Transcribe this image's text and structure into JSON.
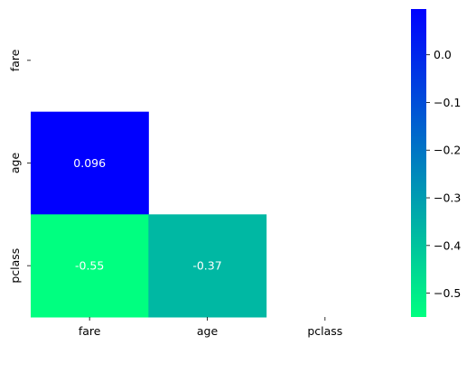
{
  "chart_data": {
    "type": "heatmap",
    "mask": "upper-triangle-including-diagonal",
    "row_labels": [
      "fare",
      "age",
      "pclass"
    ],
    "col_labels": [
      "fare",
      "age",
      "pclass"
    ],
    "cells": [
      {
        "row": 1,
        "col": 0,
        "value": 0.096,
        "label": "0.096"
      },
      {
        "row": 2,
        "col": 0,
        "value": -0.55,
        "label": "-0.55"
      },
      {
        "row": 2,
        "col": 1,
        "value": -0.37,
        "label": "-0.37"
      }
    ],
    "colormap": {
      "name": "winter_r",
      "vmin": -0.55,
      "vmax": 0.096,
      "low_color": "#00ff80",
      "high_color": "#0000ff"
    },
    "colorbar": {
      "ticks": [
        0.0,
        -0.1,
        -0.2,
        -0.3,
        -0.4,
        -0.5
      ],
      "tick_labels": [
        "0.0",
        "−0.1",
        "−0.2",
        "−0.3",
        "−0.4",
        "−0.5"
      ]
    }
  }
}
